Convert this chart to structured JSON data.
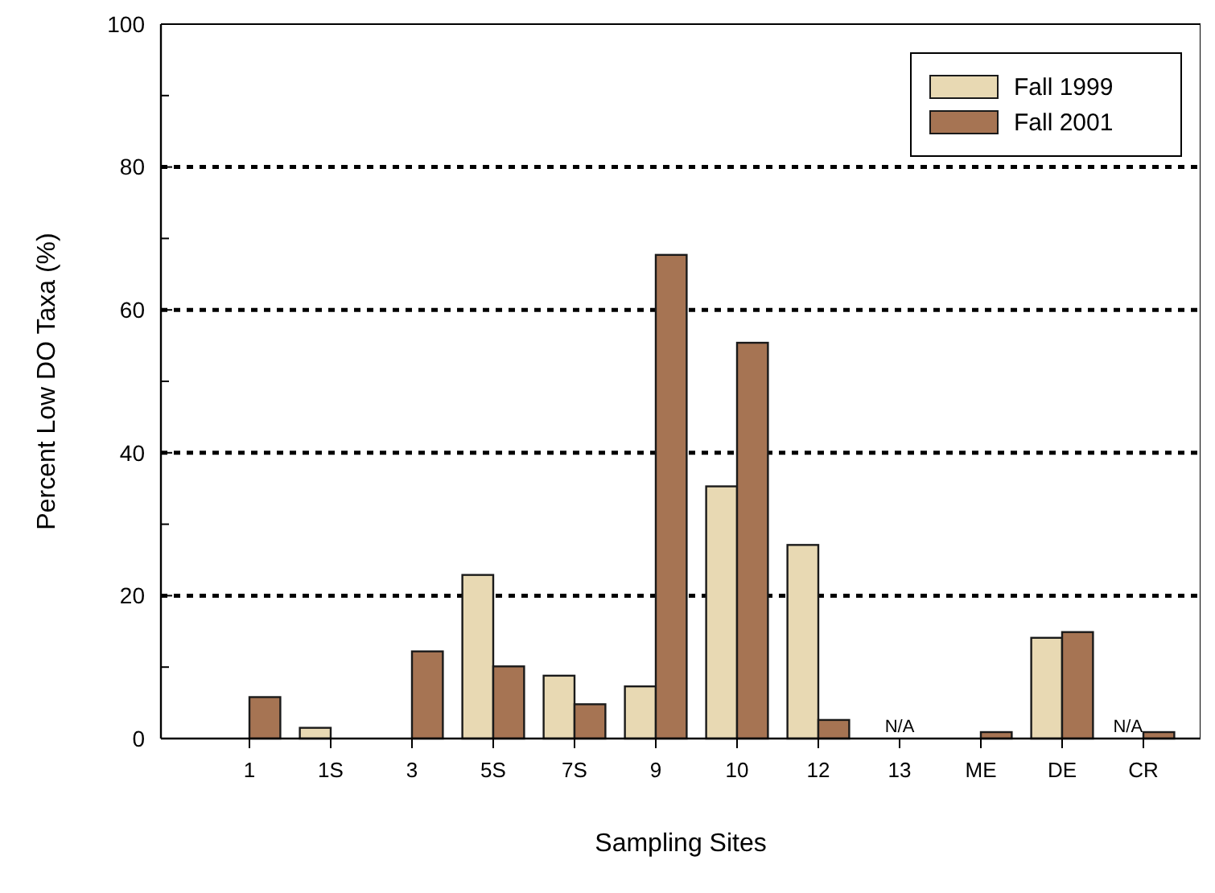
{
  "chart_data": {
    "type": "bar",
    "xlabel": "Sampling Sites",
    "ylabel": "Percent Low DO Taxa (%)",
    "categories": [
      "1",
      "1S",
      "3",
      "5S",
      "7S",
      "9",
      "10",
      "12",
      "13",
      "ME",
      "DE",
      "CR"
    ],
    "series": [
      {
        "name": "Fall 1999",
        "color": "#e8d9b3",
        "values": [
          0,
          1.5,
          0,
          22.9,
          8.8,
          7.3,
          35.3,
          27.1,
          null,
          0,
          14.1,
          null
        ]
      },
      {
        "name": "Fall 2001",
        "color": "#a67453",
        "values": [
          5.8,
          0,
          12.2,
          10.1,
          4.8,
          67.7,
          55.4,
          2.6,
          null,
          0.9,
          14.9,
          0.9
        ]
      }
    ],
    "ylim": [
      0,
      100
    ],
    "yticks": [
      0,
      {
        "value": 10,
        "label": null
      },
      20,
      {
        "value": 30,
        "label": null
      },
      40,
      {
        "value": 50,
        "label": null
      },
      60,
      {
        "value": 70,
        "label": null
      },
      80,
      {
        "value": 90,
        "label": null
      },
      100
    ],
    "grid": "y",
    "legend": "top right",
    "annotations": [
      "N/A",
      "N/A"
    ]
  }
}
